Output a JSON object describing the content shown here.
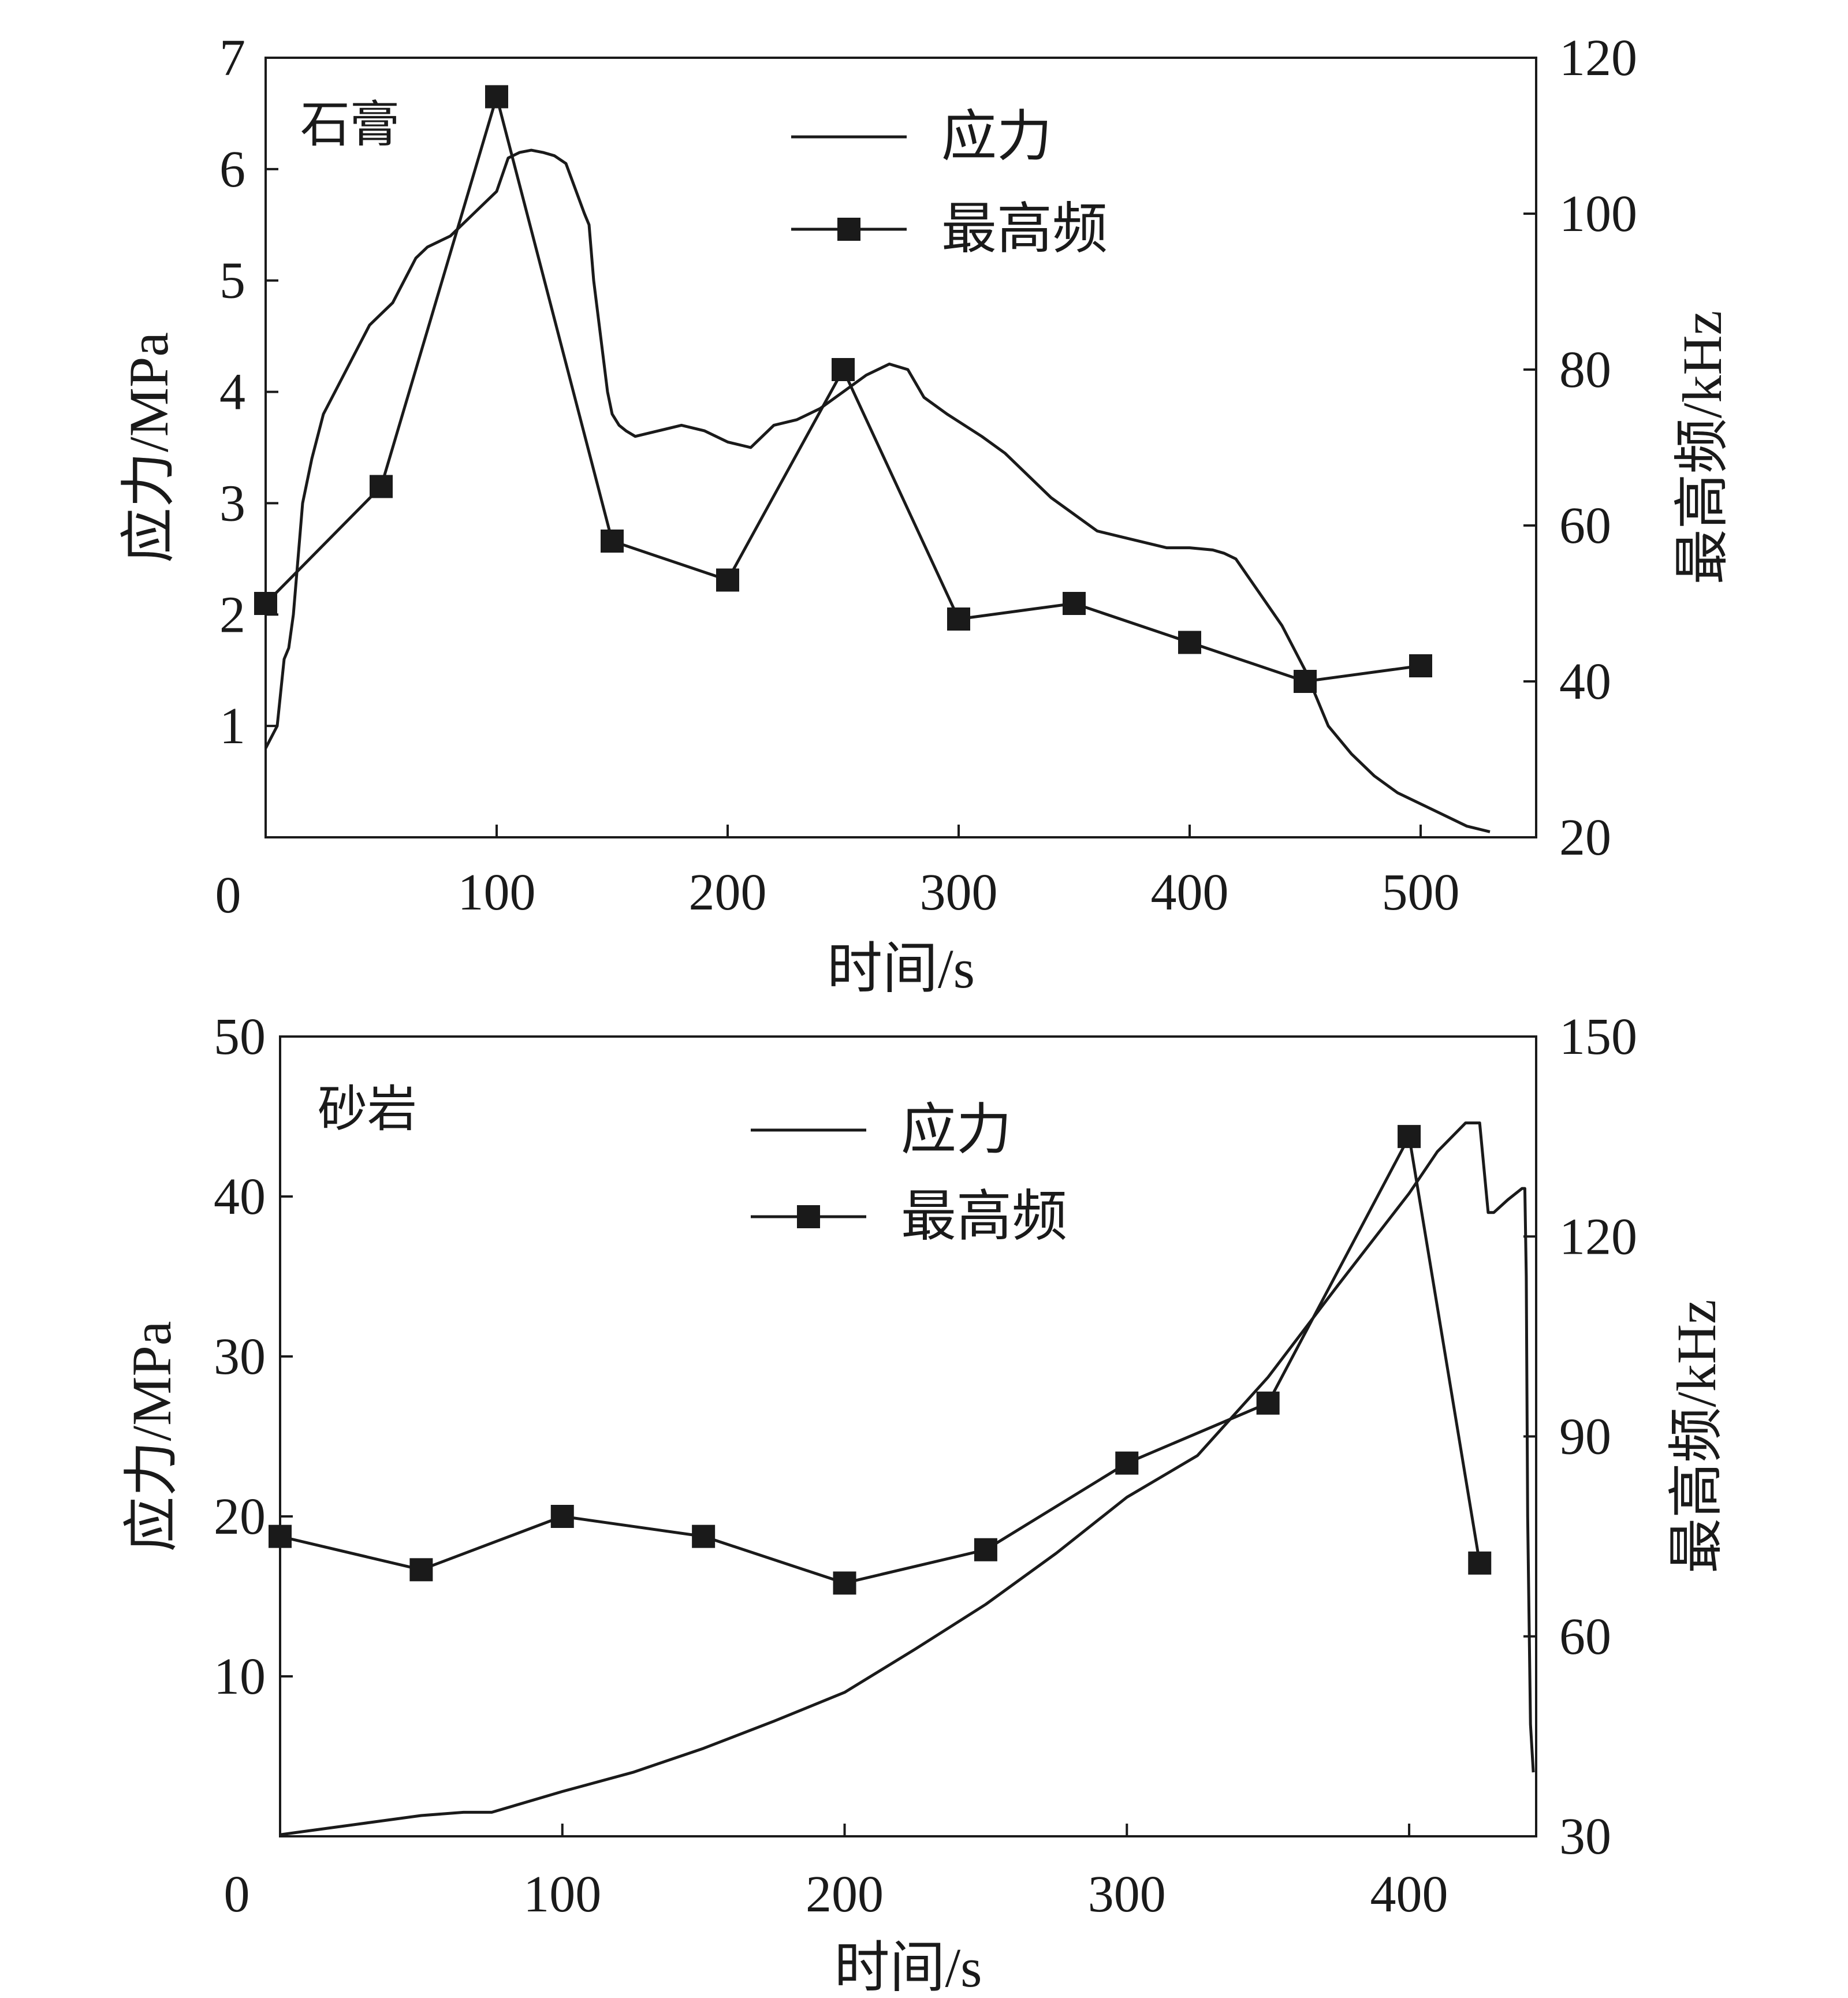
{
  "chart_data": [
    {
      "type": "line",
      "panel_label": "石膏",
      "xlabel": "时间/s",
      "ylabel_left": "应力/MPa",
      "ylabel_right": "最高频/kHz",
      "xlim": [
        0,
        550
      ],
      "ylim_left": [
        0,
        7
      ],
      "ylim_right": [
        20,
        120
      ],
      "x_ticks": [
        100,
        200,
        300,
        400,
        500
      ],
      "y_left_ticks": [
        1,
        2,
        3,
        4,
        5,
        6,
        7
      ],
      "y_right_ticks": [
        20,
        40,
        60,
        80,
        100,
        120
      ],
      "origin_label": "0",
      "legend_position": "top-center",
      "series": [
        {
          "name": "应力",
          "axis": "left",
          "style": "line",
          "x": [
            0,
            5,
            8,
            10,
            12,
            16,
            20,
            25,
            30,
            35,
            40,
            45,
            50,
            55,
            60,
            65,
            70,
            80,
            90,
            95,
            100,
            105,
            110,
            115,
            120,
            125,
            130,
            138,
            140,
            142,
            148,
            150,
            153,
            156,
            160,
            170,
            180,
            190,
            200,
            210,
            215,
            220,
            230,
            240,
            250,
            260,
            270,
            278,
            285,
            295,
            310,
            320,
            330,
            340,
            350,
            360,
            370,
            380,
            390,
            400,
            410,
            415,
            420,
            430,
            440,
            450,
            460,
            470,
            480,
            490,
            500,
            510,
            520,
            530
          ],
          "values": [
            0.8,
            1.0,
            1.6,
            1.7,
            2.0,
            3.0,
            3.4,
            3.8,
            4.0,
            4.2,
            4.4,
            4.6,
            4.7,
            4.8,
            5.0,
            5.2,
            5.3,
            5.4,
            5.6,
            5.7,
            5.8,
            6.1,
            6.15,
            6.17,
            6.15,
            6.12,
            6.05,
            5.6,
            5.5,
            5.0,
            4.0,
            3.8,
            3.7,
            3.65,
            3.6,
            3.65,
            3.7,
            3.65,
            3.55,
            3.5,
            3.6,
            3.7,
            3.75,
            3.85,
            4.0,
            4.15,
            4.25,
            4.2,
            3.95,
            3.8,
            3.6,
            3.45,
            3.25,
            3.05,
            2.9,
            2.75,
            2.7,
            2.65,
            2.6,
            2.6,
            2.58,
            2.55,
            2.5,
            2.2,
            1.9,
            1.5,
            1.0,
            0.75,
            0.55,
            0.4,
            0.3,
            0.2,
            0.1,
            0.05
          ]
        },
        {
          "name": "最高频",
          "axis": "right",
          "style": "line-square-markers",
          "x": [
            0,
            50,
            100,
            150,
            200,
            250,
            300,
            350,
            400,
            450,
            500
          ],
          "values": [
            50,
            65,
            115,
            58,
            53,
            80,
            48,
            50,
            45,
            40,
            42
          ]
        }
      ]
    },
    {
      "type": "line",
      "panel_label": "砂岩",
      "xlabel": "时间/s",
      "ylabel_left": "应力/MPa",
      "ylabel_right": "最高频/kHz",
      "xlim": [
        0,
        445
      ],
      "ylim_left": [
        0,
        50
      ],
      "ylim_right": [
        30,
        150
      ],
      "x_ticks": [
        100,
        200,
        300,
        400
      ],
      "y_left_ticks": [
        10,
        20,
        30,
        40,
        50
      ],
      "y_right_ticks": [
        30,
        60,
        90,
        120,
        150
      ],
      "origin_label": "0",
      "legend_position": "top-center",
      "series": [
        {
          "name": "应力",
          "axis": "left",
          "style": "line",
          "x": [
            0,
            25,
            50,
            65,
            75,
            100,
            125,
            150,
            175,
            200,
            225,
            250,
            275,
            300,
            325,
            350,
            375,
            400,
            410,
            420,
            425,
            428,
            430,
            435,
            440,
            441,
            441.5,
            442,
            443,
            444
          ],
          "values": [
            0.1,
            0.7,
            1.3,
            1.5,
            1.5,
            2.8,
            4.0,
            5.5,
            7.2,
            9.0,
            11.7,
            14.5,
            17.7,
            21.2,
            23.8,
            28.7,
            34.5,
            40.2,
            42.8,
            44.6,
            44.6,
            39.0,
            39.0,
            39.8,
            40.5,
            40.5,
            35.0,
            20.0,
            7.0,
            4.0
          ]
        },
        {
          "name": "最高频",
          "axis": "right",
          "style": "line-square-markers",
          "x": [
            0,
            50,
            100,
            150,
            200,
            250,
            300,
            350,
            400,
            425
          ],
          "values": [
            75,
            70,
            78,
            75,
            68,
            73,
            86,
            95,
            135,
            71
          ]
        }
      ]
    }
  ]
}
